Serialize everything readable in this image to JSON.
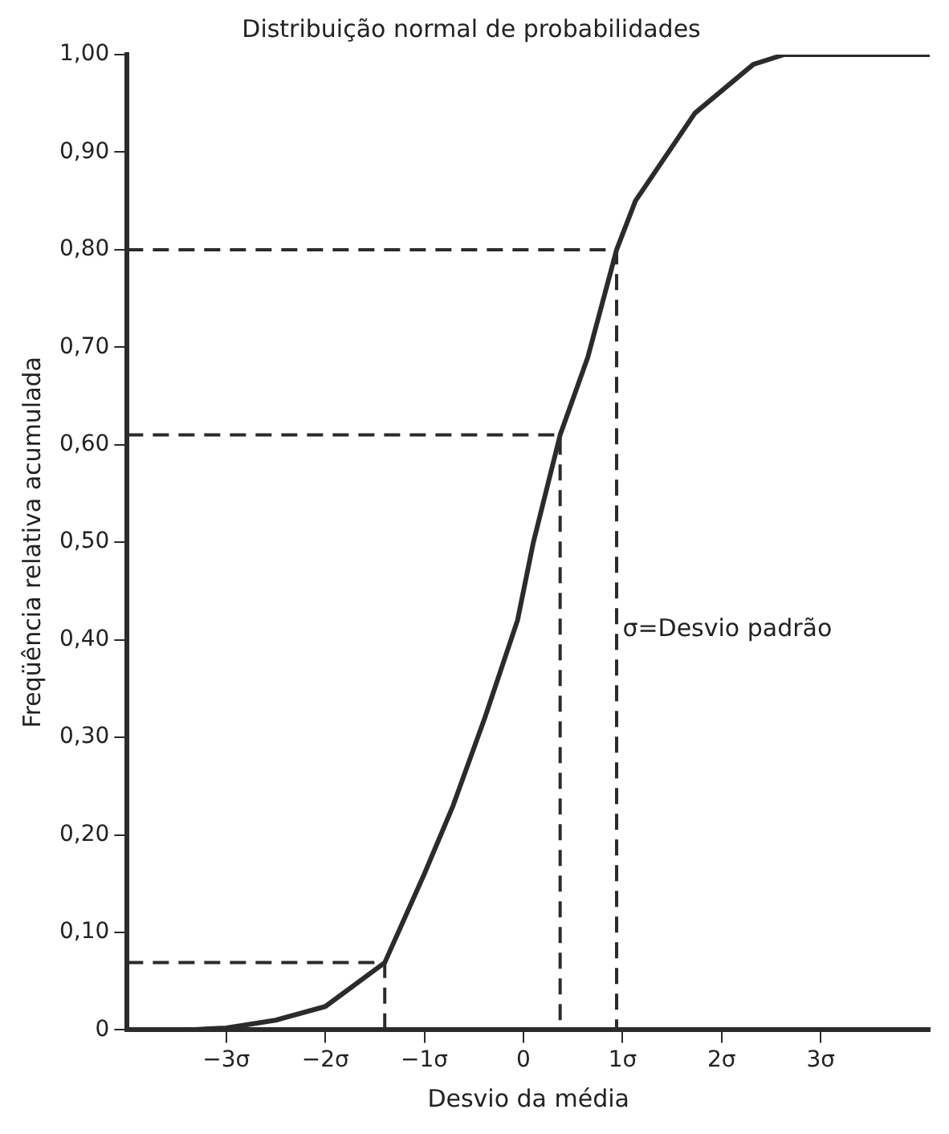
{
  "chart_data": {
    "type": "line",
    "title": "Distribuição normal de probabilidades",
    "xlabel": "Desvio da média",
    "ylabel": "Freqüência relativa acumulada",
    "annotations": [
      "σ=Desvio padrão"
    ],
    "x": [
      -3.4,
      -3,
      -2.5,
      -2,
      -1.4,
      -1,
      -0.71,
      -0.39,
      -0.06,
      0.1,
      0.37,
      0.65,
      0.94,
      1.13,
      1.73,
      2.32,
      2.63,
      4.1
    ],
    "series": [
      {
        "color": "#2b2b2b",
        "values": [
          0,
          0.002,
          0.01,
          0.024,
          0.069,
          0.16,
          0.23,
          0.32,
          0.42,
          0.5,
          0.61,
          0.69,
          0.8,
          0.85,
          0.94,
          0.99,
          1.0,
          1.0
        ]
      },
      {
        "color": "#2b2b2b",
        "line_style": "dashed",
        "x": [
          -4,
          0.94,
          0.94
        ],
        "values": [
          0.8,
          0.8,
          0
        ]
      },
      {
        "color": "#2b2b2b",
        "line_style": "dashed",
        "x": [
          -4,
          0.37,
          0.37
        ],
        "values": [
          0.61,
          0.61,
          0
        ]
      },
      {
        "color": "#2b2b2b",
        "line_style": "dashed",
        "x": [
          -4,
          -1.4,
          -1.4
        ],
        "values": [
          0.069,
          0.069,
          0
        ]
      }
    ],
    "xlim": [
      -4,
      4.1
    ],
    "xticks": [
      {
        "value": -3,
        "label": "−3σ"
      },
      {
        "value": -2,
        "label": "−2σ"
      },
      {
        "value": -1,
        "label": "−1σ"
      },
      0,
      {
        "value": 1,
        "label": "1σ"
      },
      {
        "value": 2,
        "label": "2σ"
      },
      {
        "value": 3,
        "label": "3σ"
      }
    ],
    "ylim": [
      0,
      1
    ],
    "yticks": [
      0,
      {
        "value": 0.1,
        "label": "0,10"
      },
      {
        "value": 0.2,
        "label": "0,20"
      },
      {
        "value": 0.3,
        "label": "0,30"
      },
      {
        "value": 0.4,
        "label": "0,40"
      },
      {
        "value": 0.5,
        "label": "0,50"
      },
      {
        "value": 0.6,
        "label": "0,60"
      },
      {
        "value": 0.7,
        "label": "0,70"
      },
      {
        "value": 0.8,
        "label": "0,80"
      },
      {
        "value": 0.9,
        "label": "0,90"
      },
      {
        "value": 1,
        "label": "1,00"
      }
    ],
    "grid": false,
    "legend": false,
    "marker": "none",
    "line_style": "solid"
  }
}
